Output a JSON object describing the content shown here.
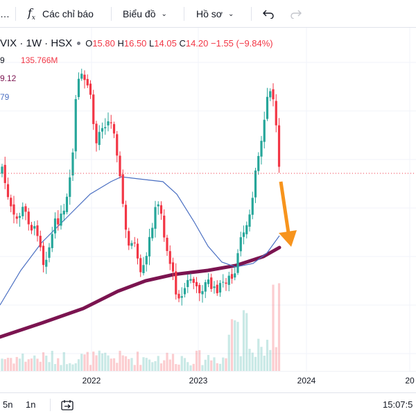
{
  "toolbar": {
    "indicators_label": "Các chỉ báo",
    "layout_label": "Biểu đồ",
    "profile_label": "Hồ sơ"
  },
  "legend": {
    "symbol": "VIX · 1W · HSX",
    "open_label": "O",
    "open": "15.80",
    "high_label": "H",
    "high": "16.50",
    "low_label": "L",
    "low": "14.05",
    "close_label": "C",
    "close": "14.20",
    "change": "−1.55 (−9.84%)",
    "volume_prefix": "9",
    "volume_value": "135.766M",
    "ma_long_value": "9.12",
    "ma_short_value": "79"
  },
  "colors": {
    "up": "#26a69a",
    "down": "#f23645",
    "ma_long": "#7b1450",
    "ma_short": "#4a6fc2",
    "arrow": "#f7941d"
  },
  "x_axis": {
    "ticks": [
      "2022",
      "2023",
      "2024",
      "20"
    ]
  },
  "bottom": {
    "range_5y": "5n",
    "range_1y": "1n",
    "time": "15:07:5"
  },
  "chart_data": {
    "type": "candlestick",
    "interval": "1W",
    "x_range": [
      "2021-03",
      "2025-01"
    ],
    "y_range": [
      0,
      25
    ],
    "last_close": 14.2,
    "series": [
      {
        "name": "9",
        "kind": "volume-bars"
      },
      {
        "name": "9.12",
        "kind": "moving-average",
        "color": "#7b1450"
      },
      {
        "name": "79",
        "kind": "moving-average",
        "color": "#4a6fc2"
      }
    ],
    "annotations": [
      "orange down arrow after last candle"
    ]
  }
}
